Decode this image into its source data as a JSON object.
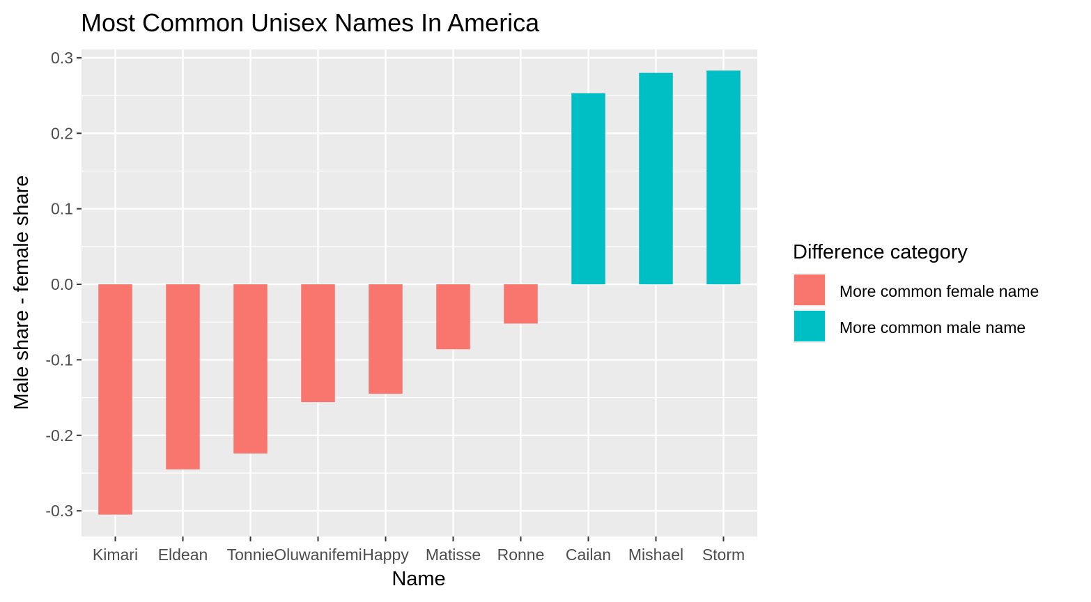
{
  "chart_data": {
    "type": "bar",
    "title": "Most Common Unisex Names In America",
    "xlabel": "Name",
    "ylabel": "Male share - female share",
    "categories": [
      "Kimari",
      "Eldean",
      "Tonnie",
      "Oluwanifemi",
      "Happy",
      "Matisse",
      "Ronne",
      "Cailan",
      "Mishael",
      "Storm"
    ],
    "values": [
      -0.305,
      -0.245,
      -0.224,
      -0.156,
      -0.145,
      -0.086,
      -0.052,
      0.253,
      0.28,
      0.283
    ],
    "value_groups": [
      "More common female name",
      "More common female name",
      "More common female name",
      "More common female name",
      "More common female name",
      "More common female name",
      "More common female name",
      "More common male name",
      "More common male name",
      "More common male name"
    ],
    "ylim": [
      -0.334,
      0.311
    ],
    "yticks": [
      -0.3,
      -0.2,
      -0.1,
      0.0,
      0.1,
      0.2,
      0.3
    ],
    "ytick_labels": [
      "-0.3",
      "-0.2",
      "-0.1",
      "0.0",
      "0.1",
      "0.2",
      "0.3"
    ],
    "grid": true,
    "legend": {
      "title": "Difference category",
      "position": "right",
      "entries": [
        {
          "label": "More common female name",
          "color": "#F8766D"
        },
        {
          "label": "More common male name",
          "color": "#00BFC4"
        }
      ]
    }
  },
  "colors": {
    "panel_background": "#EBEBEB",
    "grid_major": "#FFFFFF",
    "female": "#F8766D",
    "male": "#00BFC4"
  }
}
